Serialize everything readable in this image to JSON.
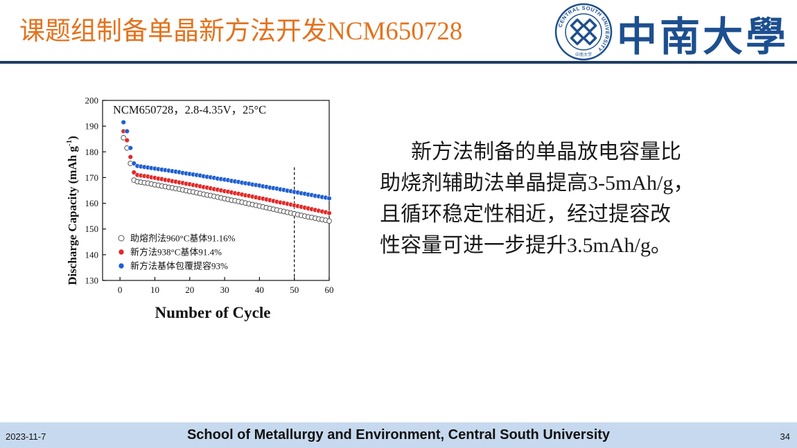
{
  "slide": {
    "title_cn": "课题组制备单晶新方法开发",
    "title_latin": "NCM650728",
    "university_name": "中南大學",
    "logo_ring_text": "CENTRAL SOUTH UNIVERSITY",
    "logo_bottom_text": "中南大学"
  },
  "body_text": {
    "line1": "新方法制备的单晶放电容量比",
    "line2_cn": "助烧剂辅助法单晶提高",
    "line2_latin": "3-5mAh/g，",
    "line3": "且循环稳定性相近，经过提容改",
    "line4_cn": "性容量可进一步提升",
    "line4_latin": "3.5mAh/g。"
  },
  "footer": {
    "date": "2023-11-7",
    "school": "School of Metallurgy and Environment, Central South University",
    "page": "34"
  },
  "chart_data": {
    "type": "scatter",
    "title": "NCM650728，2.8-4.35V，25°C",
    "xlabel": "Number of Cycle",
    "ylabel": "Discharge Capacity (mAh g",
    "ylabel_sup": "-1",
    "ylabel_close": ")",
    "xlim": [
      -5,
      60
    ],
    "ylim": [
      130,
      200
    ],
    "x_ticks": [
      0,
      10,
      20,
      30,
      40,
      50,
      60
    ],
    "y_ticks": [
      130,
      140,
      150,
      160,
      170,
      180,
      190,
      200
    ],
    "reference_line_x": 50,
    "legend_position": "bottom-left",
    "series": [
      {
        "name": "助熔剂法960°C基体91.16%",
        "style": "open",
        "color": "#555555",
        "x": [
          1,
          2,
          3,
          4,
          5,
          6,
          7,
          8,
          9,
          10,
          11,
          12,
          13,
          14,
          15,
          16,
          17,
          18,
          19,
          20,
          21,
          22,
          23,
          24,
          25,
          26,
          27,
          28,
          29,
          30,
          31,
          32,
          33,
          34,
          35,
          36,
          37,
          38,
          39,
          40,
          41,
          42,
          43,
          44,
          45,
          46,
          47,
          48,
          49,
          50,
          51,
          52,
          53,
          54,
          55,
          56,
          57,
          58,
          59,
          60
        ],
        "y": [
          185.5,
          181.5,
          175.5,
          169.0,
          168.4,
          168.2,
          168.0,
          167.8,
          167.5,
          167.2,
          167.0,
          166.7,
          166.5,
          166.2,
          166.0,
          165.7,
          165.5,
          165.2,
          164.9,
          164.6,
          164.4,
          164.1,
          163.8,
          163.5,
          163.2,
          163.0,
          162.7,
          162.4,
          162.1,
          161.8,
          161.5,
          161.2,
          161.0,
          160.7,
          160.4,
          160.1,
          159.8,
          159.5,
          159.2,
          158.9,
          158.6,
          158.3,
          158.0,
          157.7,
          157.4,
          157.1,
          156.8,
          156.5,
          156.2,
          155.9,
          155.6,
          155.3,
          155.0,
          154.7,
          154.5,
          154.2,
          153.9,
          153.7,
          153.4,
          153.1
        ]
      },
      {
        "name": "新方法938°C基体91.4%",
        "style": "filled",
        "color": "#e02a2a",
        "x": [
          1,
          2,
          3,
          4,
          5,
          6,
          7,
          8,
          9,
          10,
          11,
          12,
          13,
          14,
          15,
          16,
          17,
          18,
          19,
          20,
          21,
          22,
          23,
          24,
          25,
          26,
          27,
          28,
          29,
          30,
          31,
          32,
          33,
          34,
          35,
          36,
          37,
          38,
          39,
          40,
          41,
          42,
          43,
          44,
          45,
          46,
          47,
          48,
          49,
          50,
          51,
          52,
          53,
          54,
          55,
          56,
          57,
          58,
          59,
          60
        ],
        "y": [
          188.0,
          184.5,
          178.0,
          172.0,
          171.0,
          170.8,
          170.6,
          170.4,
          170.1,
          169.9,
          169.6,
          169.4,
          169.1,
          168.9,
          168.6,
          168.4,
          168.1,
          167.9,
          167.6,
          167.4,
          167.1,
          166.9,
          166.6,
          166.3,
          166.1,
          165.8,
          165.5,
          165.3,
          165.0,
          164.7,
          164.5,
          164.2,
          163.9,
          163.7,
          163.4,
          163.1,
          162.9,
          162.6,
          162.3,
          162.0,
          161.8,
          161.5,
          161.2,
          160.9,
          160.6,
          160.3,
          160.1,
          159.8,
          159.5,
          159.2,
          158.9,
          158.6,
          158.3,
          158.0,
          157.7,
          157.4,
          157.1,
          156.8,
          156.5,
          156.2
        ]
      },
      {
        "name": "新方法基体包覆提容93%",
        "style": "filled",
        "color": "#1f5fd0",
        "x": [
          1,
          2,
          3,
          4,
          5,
          6,
          7,
          8,
          9,
          10,
          11,
          12,
          13,
          14,
          15,
          16,
          17,
          18,
          19,
          20,
          21,
          22,
          23,
          24,
          25,
          26,
          27,
          28,
          29,
          30,
          31,
          32,
          33,
          34,
          35,
          36,
          37,
          38,
          39,
          40,
          41,
          42,
          43,
          44,
          45,
          46,
          47,
          48,
          49,
          50,
          51,
          52,
          53,
          54,
          55,
          56,
          57,
          58,
          59,
          60
        ],
        "y": [
          191.5,
          188.0,
          181.5,
          175.5,
          174.5,
          174.3,
          174.1,
          173.9,
          173.7,
          173.5,
          173.3,
          173.1,
          172.9,
          172.7,
          172.5,
          172.3,
          172.1,
          171.8,
          171.6,
          171.4,
          171.2,
          171.0,
          170.8,
          170.5,
          170.3,
          170.1,
          169.9,
          169.6,
          169.4,
          169.2,
          169.0,
          168.7,
          168.5,
          168.3,
          168.0,
          167.8,
          167.6,
          167.3,
          167.1,
          166.9,
          166.6,
          166.4,
          166.1,
          165.9,
          165.7,
          165.4,
          165.2,
          164.9,
          164.7,
          164.4,
          164.2,
          163.9,
          163.7,
          163.4,
          163.2,
          162.9,
          162.7,
          162.4,
          162.2,
          161.9
        ]
      }
    ]
  }
}
